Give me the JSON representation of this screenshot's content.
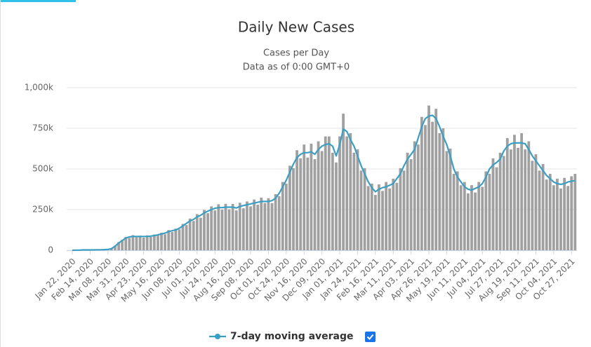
{
  "chart_data": {
    "type": "bar_line",
    "title": "Daily New Cases",
    "subtitle": [
      "Cases per Day",
      "Data as of 0:00 GMT+0"
    ],
    "categories": [
      "Jan 22, 2020",
      null,
      null,
      null,
      null,
      "Feb 14, 2020",
      null,
      null,
      null,
      null,
      "Mar 08, 2020",
      null,
      null,
      null,
      null,
      "Mar 31, 2020",
      null,
      null,
      null,
      null,
      "Apr 23, 2020",
      null,
      null,
      null,
      null,
      "May 16, 2020",
      null,
      null,
      null,
      null,
      "Jun 08, 2020",
      null,
      null,
      null,
      null,
      "Jul 01, 2020",
      null,
      null,
      null,
      null,
      "Jul 24, 2020",
      null,
      null,
      null,
      null,
      "Aug 16, 2020",
      null,
      null,
      null,
      null,
      "Sep 08, 2020",
      null,
      null,
      null,
      null,
      "Oct 01, 2020",
      null,
      null,
      null,
      null,
      "Oct 24, 2020",
      null,
      null,
      null,
      null,
      "Nov 16, 2020",
      null,
      null,
      null,
      null,
      "Dec 09, 2020",
      null,
      null,
      null,
      null,
      "Jan 01, 2021",
      null,
      null,
      null,
      null,
      "Jan 24, 2021",
      null,
      null,
      null,
      null,
      "Feb 16, 2021",
      null,
      null,
      null,
      null,
      "Mar 11, 2021",
      null,
      null,
      null,
      null,
      "Apr 03, 2021",
      null,
      null,
      null,
      null,
      "Apr 26, 2021",
      null,
      null,
      null,
      null,
      "May 19, 2021",
      null,
      null,
      null,
      null,
      "Jun 11, 2021",
      null,
      null,
      null,
      null,
      "Jul 04, 2021",
      null,
      null,
      null,
      null,
      "Jul 27, 2021",
      null,
      null,
      null,
      null,
      "Aug 19, 2021",
      null,
      null,
      null,
      null,
      "Sep 11, 2021",
      null,
      null,
      null,
      null,
      "Oct 04, 2021",
      null,
      null,
      null,
      null,
      "Oct 27, 2021",
      null
    ],
    "series": [
      {
        "kind": "bar",
        "color": "#a0a0a0",
        "values": [
          0,
          1000,
          1000,
          2000,
          3000,
          2000,
          3000,
          2000,
          4000,
          5000,
          6000,
          12000,
          28000,
          50000,
          64000,
          82000,
          75000,
          93000,
          80000,
          90000,
          78000,
          92000,
          82000,
          97000,
          90000,
          108000,
          98000,
          124000,
          112000,
          133000,
          128000,
          162000,
          155000,
          195000,
          180000,
          222000,
          200000,
          248000,
          228000,
          270000,
          245000,
          283000,
          250000,
          286000,
          252000,
          285000,
          245000,
          292000,
          258000,
          300000,
          270000,
          312000,
          280000,
          324000,
          290000,
          320000,
          290000,
          345000,
          332000,
          420000,
          410000,
          520000,
          505000,
          615000,
          565000,
          650000,
          570000,
          655000,
          560000,
          670000,
          610000,
          700000,
          700000,
          600000,
          540000,
          700000,
          840000,
          700000,
          720000,
          600000,
          620000,
          490000,
          505000,
          395000,
          410000,
          340000,
          405000,
          365000,
          420000,
          380000,
          440000,
          415000,
          505000,
          490000,
          600000,
          560000,
          670000,
          650000,
          820000,
          770000,
          890000,
          790000,
          870000,
          720000,
          750000,
          610000,
          625000,
          470000,
          485000,
          400000,
          420000,
          350000,
          400000,
          355000,
          420000,
          390000,
          485000,
          470000,
          565000,
          510000,
          600000,
          580000,
          690000,
          620000,
          710000,
          630000,
          720000,
          620000,
          670000,
          550000,
          590000,
          490000,
          530000,
          435000,
          470000,
          400000,
          440000,
          380000,
          445000,
          395000,
          455000,
          470000
        ]
      },
      {
        "kind": "line",
        "name": "7-day moving average",
        "color": "#3b9fc4",
        "values": [
          0,
          1000,
          1000,
          2000,
          2000,
          2000,
          2000,
          3000,
          3000,
          4000,
          5000,
          10000,
          25000,
          45000,
          60000,
          75000,
          82000,
          85000,
          85000,
          85000,
          85000,
          85000,
          87000,
          90000,
          95000,
          100000,
          105000,
          115000,
          120000,
          125000,
          135000,
          150000,
          165000,
          180000,
          190000,
          205000,
          215000,
          230000,
          240000,
          250000,
          258000,
          262000,
          262000,
          265000,
          265000,
          265000,
          260000,
          270000,
          275000,
          280000,
          285000,
          290000,
          295000,
          300000,
          300000,
          300000,
          305000,
          320000,
          350000,
          390000,
          430000,
          480000,
          530000,
          570000,
          590000,
          600000,
          600000,
          605000,
          590000,
          620000,
          640000,
          650000,
          655000,
          640000,
          580000,
          650000,
          745000,
          730000,
          680000,
          640000,
          580000,
          520000,
          470000,
          420000,
          385000,
          360000,
          375000,
          385000,
          390000,
          400000,
          410000,
          440000,
          470000,
          520000,
          560000,
          590000,
          620000,
          690000,
          760000,
          810000,
          825000,
          830000,
          810000,
          760000,
          700000,
          650000,
          580000,
          500000,
          450000,
          420000,
          390000,
          375000,
          370000,
          380000,
          390000,
          410000,
          450000,
          500000,
          525000,
          540000,
          560000,
          610000,
          640000,
          655000,
          660000,
          660000,
          660000,
          655000,
          620000,
          580000,
          550000,
          520000,
          490000,
          460000,
          440000,
          420000,
          410000,
          405000,
          410000,
          420000,
          425000,
          428000
        ]
      }
    ],
    "ylim": [
      0,
      1000000
    ],
    "yticks": [
      0,
      {
        "value": 250000,
        "label": "250k"
      },
      {
        "value": 500000,
        "label": "500k"
      },
      {
        "value": 750000,
        "label": "750k"
      },
      {
        "value": 1000000,
        "label": "1,000k"
      }
    ],
    "grid": true
  }
}
